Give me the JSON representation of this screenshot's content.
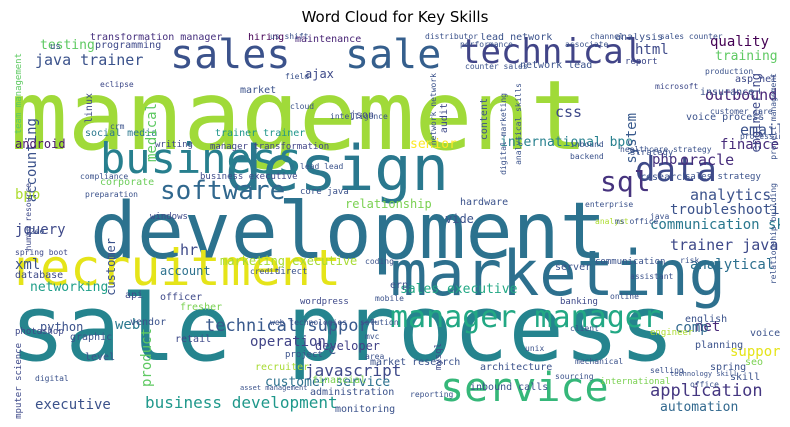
{
  "title": "Word Cloud for Key Skills",
  "words": [
    {
      "text": "management",
      "color": "#a0da39"
    },
    {
      "text": "development",
      "color": "#2c728e"
    },
    {
      "text": "sale process",
      "color": "#25848e"
    },
    {
      "text": "marketing",
      "color": "#2d708e"
    },
    {
      "text": "recruitment",
      "color": "#e5e419"
    },
    {
      "text": "design",
      "color": "#2a788e"
    },
    {
      "text": "sales",
      "color": "#3b528b"
    },
    {
      "text": "sale",
      "color": "#355f8d"
    },
    {
      "text": "technical",
      "color": "#414487"
    },
    {
      "text": "business",
      "color": "#277f8e"
    },
    {
      "text": "service",
      "color": "#35b779"
    },
    {
      "text": "manager manager",
      "color": "#22a884"
    },
    {
      "text": "software",
      "color": "#31688e"
    },
    {
      "text": "data",
      "color": "#3e4a89"
    },
    {
      "text": "sql",
      "color": "#46337e"
    },
    {
      "text": "java trainer",
      "color": "#3b528b"
    },
    {
      "text": "technical support",
      "color": "#38598c"
    },
    {
      "text": "business development",
      "color": "#1f988b"
    },
    {
      "text": "marketing executive",
      "color": "#a8db34"
    },
    {
      "text": "javascript",
      "color": "#3e4989"
    },
    {
      "text": "customer service",
      "color": "#2c718e"
    },
    {
      "text": "application",
      "color": "#453781"
    },
    {
      "text": "automation",
      "color": "#31688e"
    },
    {
      "text": "executive",
      "color": "#3b528b"
    },
    {
      "text": "quality",
      "color": "#440154"
    },
    {
      "text": "training",
      "color": "#5ec962"
    },
    {
      "text": "outbound",
      "color": "#482475"
    },
    {
      "text": "html",
      "color": "#3e4a89"
    },
    {
      "text": "css",
      "color": "#3e4989"
    },
    {
      "text": "email",
      "color": "#3b528b"
    },
    {
      "text": "finance",
      "color": "#472c7a"
    },
    {
      "text": "analytics",
      "color": "#3b528b"
    },
    {
      "text": "php",
      "color": "#46327e"
    },
    {
      "text": "oracle",
      "color": "#472d7b"
    },
    {
      "text": "troubleshooting",
      "color": "#3b528b"
    },
    {
      "text": "communication skill",
      "color": "#2a788e"
    },
    {
      "text": "trainer java",
      "color": "#3e4989"
    },
    {
      "text": "analytical",
      "color": "#2d708e"
    },
    {
      "text": "relationship",
      "color": "#7ad151"
    },
    {
      "text": "sales executive",
      "color": "#22a884"
    },
    {
      "text": "international bpo",
      "color": "#27808e"
    },
    {
      "text": "senior",
      "color": "#fde725"
    },
    {
      "text": "testing",
      "color": "#5ec962"
    },
    {
      "text": "accounting",
      "color": "#3b528b"
    },
    {
      "text": "jquery",
      "color": "#3e4989"
    },
    {
      "text": "bpo",
      "color": "#addc30"
    },
    {
      "text": "xml",
      "color": "#3b528b"
    },
    {
      "text": "android",
      "color": "#48186a"
    },
    {
      "text": "social media",
      "color": "#2a788e"
    },
    {
      "text": "trainer trainer",
      "color": "#1f968b"
    },
    {
      "text": "networking",
      "color": "#1f9e89"
    },
    {
      "text": "python",
      "color": "#3b528b"
    },
    {
      "text": "web",
      "color": "#2a788e"
    },
    {
      "text": "account",
      "color": "#2c718e"
    },
    {
      "text": "hr",
      "color": "#3e4a89"
    },
    {
      "text": "support",
      "color": "#e5e419"
    },
    {
      "text": "net",
      "color": "#482878"
    },
    {
      "text": "comp",
      "color": "#31688e"
    },
    {
      "text": "operation",
      "color": "#414487"
    },
    {
      "text": "developer",
      "color": "#424186"
    },
    {
      "text": "product",
      "color": "#5ec962"
    },
    {
      "text": "medical",
      "color": "#5ec962"
    },
    {
      "text": "system",
      "color": "#38598c"
    },
    {
      "text": "engineering",
      "color": "#3e4989"
    },
    {
      "text": "vide",
      "color": "#3b528b"
    },
    {
      "text": "ajax",
      "color": "#3e4a89"
    },
    {
      "text": "programming",
      "color": "#3e4989"
    },
    {
      "text": "maintenance",
      "color": "#482475"
    },
    {
      "text": "lead network",
      "color": "#3b528b"
    },
    {
      "text": "transformation manager",
      "color": "#46307e"
    },
    {
      "text": "hiring",
      "color": "#440154"
    },
    {
      "text": "analysis",
      "color": "#3b528b"
    },
    {
      "text": "customer",
      "color": "#3b528b"
    },
    {
      "text": "corporate",
      "color": "#6ccd5a"
    },
    {
      "text": "windows",
      "color": "#3e4989"
    },
    {
      "text": "business executive",
      "color": "#3e4a89"
    },
    {
      "text": "manager transformation",
      "color": "#414487"
    },
    {
      "text": "core java",
      "color": "#3b528b"
    },
    {
      "text": "writing",
      "color": "#3e4989"
    },
    {
      "text": "database",
      "color": "#3e4989"
    },
    {
      "text": "photoshop",
      "color": "#3e4989"
    },
    {
      "text": "officer",
      "color": "#3e4989"
    },
    {
      "text": "fresher",
      "color": "#7ad151"
    },
    {
      "text": "wordpress",
      "color": "#3e4989"
    },
    {
      "text": "hardware",
      "color": "#3b528b"
    },
    {
      "text": "banking",
      "color": "#3e4989"
    },
    {
      "text": "market research",
      "color": "#3b528b"
    },
    {
      "text": "architecture",
      "color": "#3b528b"
    },
    {
      "text": "inbound calls",
      "color": "#3b528b"
    },
    {
      "text": "financial",
      "color": "#7ad151"
    },
    {
      "text": "administration",
      "color": "#3b528b"
    },
    {
      "text": "monitoring",
      "color": "#3b528b"
    },
    {
      "text": "recruiter",
      "color": "#a8db34"
    },
    {
      "text": "retail",
      "color": "#3e4989"
    },
    {
      "text": "level",
      "color": "#3b528b"
    },
    {
      "text": "graphic",
      "color": "#3b528b"
    },
    {
      "text": "computer science",
      "color": "#3e4989"
    },
    {
      "text": "api",
      "color": "#3e4989"
    },
    {
      "text": "vendor",
      "color": "#3b528b"
    },
    {
      "text": "planning",
      "color": "#3b528b"
    },
    {
      "text": "english",
      "color": "#3b528b"
    },
    {
      "text": "engineer",
      "color": "#addc30"
    },
    {
      "text": "voice",
      "color": "#3b528b"
    },
    {
      "text": "spring",
      "color": "#3b528b"
    },
    {
      "text": "skill",
      "color": "#3b528b"
    },
    {
      "text": "voice process",
      "color": "#3b528b"
    },
    {
      "text": "insurance",
      "color": "#3b528b"
    },
    {
      "text": "asp net",
      "color": "#3e4989"
    },
    {
      "text": "report",
      "color": "#3e4989"
    },
    {
      "text": "research",
      "color": "#3b528b"
    },
    {
      "text": "sales strategy",
      "color": "#3b528b"
    },
    {
      "text": "strategy",
      "color": "#3b528b"
    },
    {
      "text": "audit",
      "color": "#3e4989"
    },
    {
      "text": "content",
      "color": "#3b528b"
    },
    {
      "text": "json",
      "color": "#3e4989"
    },
    {
      "text": "linux",
      "color": "#3e4989"
    },
    {
      "text": "market",
      "color": "#3b528b"
    },
    {
      "text": "erp",
      "color": "#3b528b"
    },
    {
      "text": "server",
      "color": "#3b528b"
    },
    {
      "text": "communication",
      "color": "#3b528b"
    },
    {
      "text": "network lead",
      "color": "#3b528b"
    },
    {
      "text": "team management",
      "color": "#5ec962"
    },
    {
      "text": "us",
      "color": "#3b528b"
    },
    {
      "text": "project management",
      "color": "#3b528b"
    },
    {
      "text": "production",
      "color": "#3b528b"
    },
    {
      "text": "microsoft",
      "color": "#3e4989"
    },
    {
      "text": "seo",
      "color": "#7ad151"
    },
    {
      "text": "mysql",
      "color": "#3e4989"
    },
    {
      "text": "mechanical",
      "color": "#3b528b"
    },
    {
      "text": "sourcing",
      "color": "#3b528b"
    },
    {
      "text": "international",
      "color": "#7ad151"
    },
    {
      "text": "solution",
      "color": "#3b528b"
    },
    {
      "text": "web technologies",
      "color": "#3b528b"
    },
    {
      "text": "credit",
      "color": "#3b528b"
    },
    {
      "text": "direct",
      "color": "#3b528b"
    },
    {
      "text": "risk",
      "color": "#3b528b"
    },
    {
      "text": "healthcare strategy",
      "color": "#3b528b"
    },
    {
      "text": "digital marketing",
      "color": "#3b528b"
    },
    {
      "text": "analytical skills",
      "color": "#3b528b"
    },
    {
      "text": "channel",
      "color": "#3b528b"
    },
    {
      "text": "associate",
      "color": "#3b528b"
    },
    {
      "text": "distributor",
      "color": "#3b528b"
    },
    {
      "text": "us shift",
      "color": "#3b528b"
    },
    {
      "text": "counter sales",
      "color": "#3b528b"
    },
    {
      "text": "lead lead",
      "color": "#3b528b"
    },
    {
      "text": "intelligence",
      "color": "#3b528b"
    },
    {
      "text": "cloud",
      "color": "#3b528b"
    },
    {
      "text": "eclipse",
      "color": "#3e4989"
    },
    {
      "text": "field",
      "color": "#3b528b"
    },
    {
      "text": "inbound",
      "color": "#3b528b"
    },
    {
      "text": "backend",
      "color": "#3b528b"
    },
    {
      "text": "enterprise",
      "color": "#3b528b"
    },
    {
      "text": "analyst",
      "color": "#addc30"
    },
    {
      "text": "ms office",
      "color": "#3b528b"
    },
    {
      "text": "java",
      "color": "#3b528b"
    },
    {
      "text": "spring boot",
      "color": "#3e4989"
    },
    {
      "text": "compliance",
      "color": "#3b528b"
    },
    {
      "text": "preparation",
      "color": "#3b528b"
    },
    {
      "text": "client",
      "color": "#3b528b"
    },
    {
      "text": "coding",
      "color": "#3b528b"
    },
    {
      "text": "project",
      "color": "#3b528b"
    },
    {
      "text": "area",
      "color": "#3b528b"
    },
    {
      "text": "selling",
      "color": "#3b528b"
    },
    {
      "text": "asset management",
      "color": "#3b528b"
    },
    {
      "text": "digital",
      "color": "#3b528b"
    },
    {
      "text": "mobile",
      "color": "#3b528b"
    },
    {
      "text": "reporting",
      "color": "#3b528b"
    },
    {
      "text": "office",
      "color": "#3b528b"
    },
    {
      "text": "technology skill",
      "color": "#3b528b"
    },
    {
      "text": "human resource",
      "color": "#3e4989"
    },
    {
      "text": "j2ee",
      "color": "#3b528b"
    },
    {
      "text": "crm",
      "color": "#3b528b"
    },
    {
      "text": "processing",
      "color": "#3b528b"
    },
    {
      "text": "sales counter",
      "color": "#3b528b"
    },
    {
      "text": "performance",
      "color": "#3b528b"
    },
    {
      "text": "customer care",
      "color": "#3b528b"
    },
    {
      "text": "relationship building",
      "color": "#3b528b"
    },
    {
      "text": "network network",
      "color": "#3b528b"
    },
    {
      "text": "mvc",
      "color": "#3b528b"
    },
    {
      "text": "unix",
      "color": "#3b528b"
    },
    {
      "text": "online",
      "color": "#3b528b"
    },
    {
      "text": "assistant",
      "color": "#3b528b"
    },
    {
      "text": "c",
      "color": "#3b528b"
    }
  ]
}
